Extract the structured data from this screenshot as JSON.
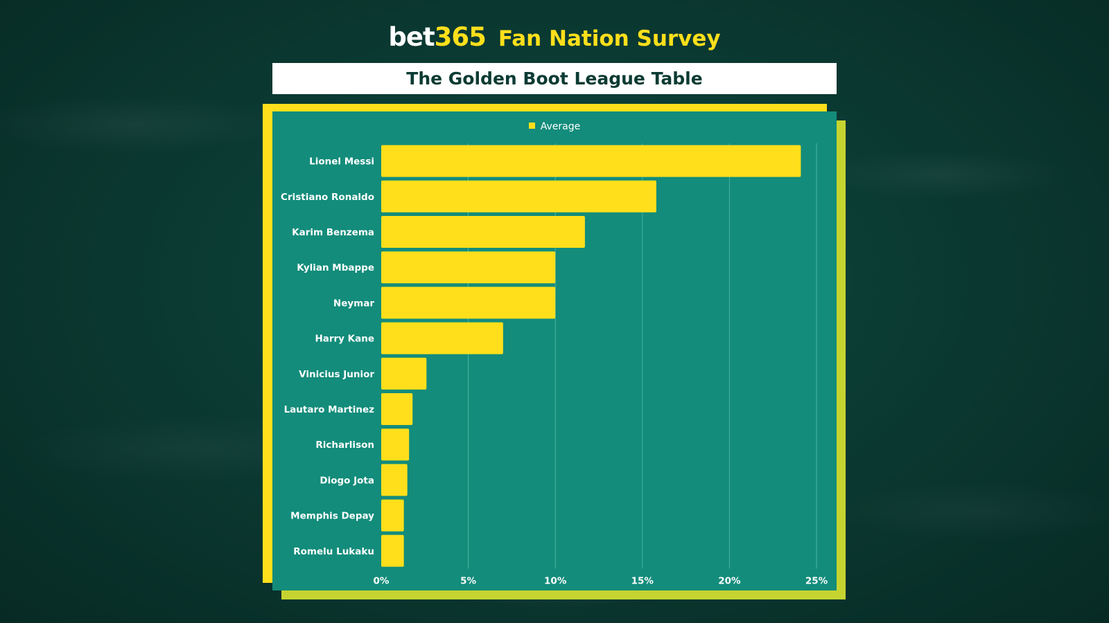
{
  "header": {
    "brand_main": "bet",
    "brand_num": "365",
    "survey": "Fan Nation Survey"
  },
  "chart_data": {
    "type": "bar",
    "orientation": "horizontal",
    "title": "The Golden Boot League Table",
    "legend": [
      "Average"
    ],
    "legend_position": "top",
    "categories": [
      "Lionel Messi",
      "Cristiano Ronaldo",
      "Karim Benzema",
      "Kylian Mbappe",
      "Neymar",
      "Harry Kane",
      "Vinicius Junior",
      "Lautaro Martinez",
      "Richarlison",
      "Diogo Jota",
      "Memphis Depay",
      "Romelu Lukaku"
    ],
    "series": [
      {
        "name": "Average",
        "values": [
          24.1,
          15.8,
          11.7,
          10.0,
          10.0,
          7.0,
          2.6,
          1.8,
          1.6,
          1.5,
          1.3,
          1.3
        ]
      }
    ],
    "xlim": [
      0,
      25
    ],
    "x_ticks": [
      "0%",
      "5%",
      "10%",
      "15%",
      "20%",
      "25%"
    ],
    "x_tick_values": [
      0,
      5,
      10,
      15,
      20,
      25
    ],
    "grid": "vertical",
    "colors": {
      "bar": "#ffdf1b",
      "panel": "#138c7b",
      "grid": "#4bb3a4"
    }
  }
}
